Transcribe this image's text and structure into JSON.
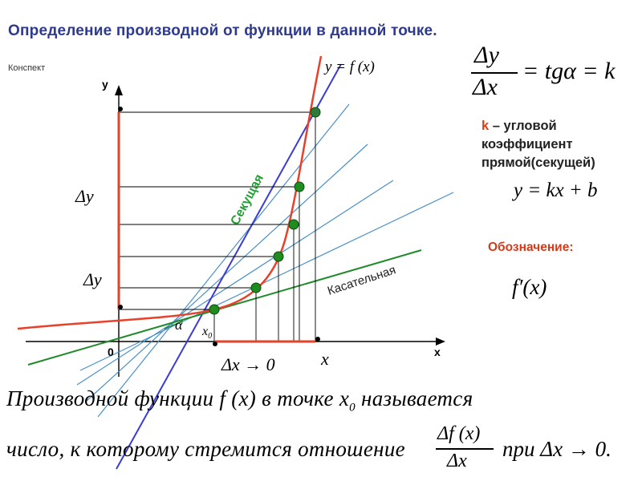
{
  "header": {
    "title": "Определение производной от функции в данной точке.",
    "subtitle": "Конспект"
  },
  "graph": {
    "axis_y": "y",
    "axis_x": "x",
    "origin": "0",
    "func_label": "y = f (x)",
    "secant_label": "Секущая",
    "tangent_label": "Касательная",
    "delta_y_1": "Δy",
    "delta_y_2": "Δy",
    "alpha": "α",
    "x0": "x",
    "x0_sub": "0",
    "x_point": "x",
    "dx_limit": "Δx → 0",
    "colors": {
      "curve": "#e8412a",
      "secant": "#3b3bd6",
      "tangent": "#1f8a2a",
      "points": "#1e8c1e",
      "axes": "#000000"
    }
  },
  "formulas": {
    "ratio_num": "Δy",
    "ratio_den": "Δx",
    "ratio_rhs": "= tgα = k",
    "linear": "y = kx + b",
    "notation": "f′(x)"
  },
  "explanation": {
    "k_letter": "k",
    "k_text_1": " – угловой",
    "k_text_2": "коэффициент",
    "k_text_3": "прямой(секущей)",
    "notation_label": "Обозначение:"
  },
  "definition": {
    "line1": "Производной функции f (x) в точке x",
    "line1_sub": "0",
    "line1_end": " называется",
    "line2_start": "число, к которому стремится отношение",
    "frac_num": "Δf (x)",
    "frac_den": "Δx",
    "line2_end": "при Δx → 0."
  }
}
